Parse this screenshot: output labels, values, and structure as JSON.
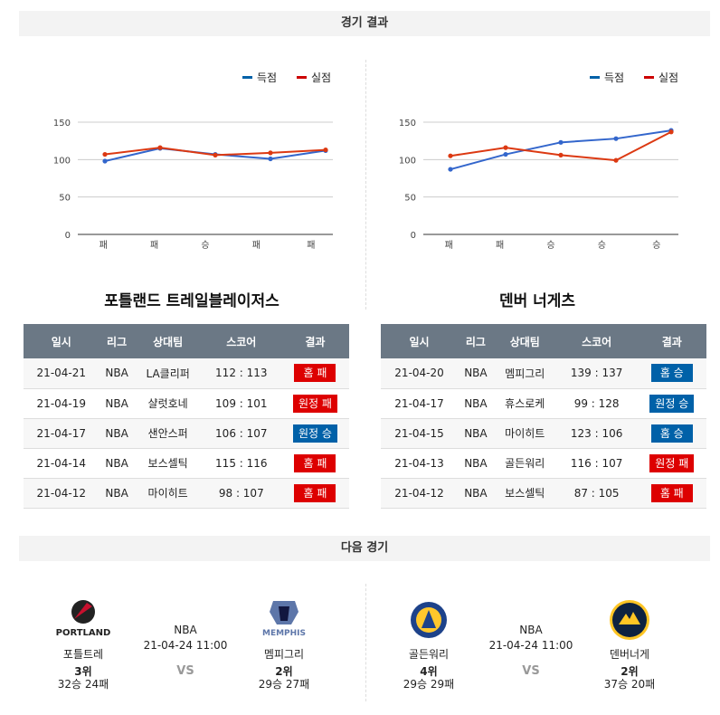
{
  "sections": {
    "results_title": "경기 결과",
    "next_title": "다음 경기"
  },
  "legend": {
    "scored": "득점",
    "conceded": "실점"
  },
  "colors": {
    "scored": "#3366cc",
    "conceded": "#dc3912",
    "loss_badge": "#dd0000",
    "win_badge": "#0061a8"
  },
  "chart_data": [
    {
      "type": "line",
      "title": "포틀랜드 트레일블레이저스",
      "categories": [
        "패",
        "패",
        "승",
        "패",
        "패"
      ],
      "ylim": [
        0,
        150
      ],
      "yticks": [
        0,
        50,
        100,
        150
      ],
      "series": [
        {
          "name": "득점",
          "values": [
            98,
            115,
            107,
            101,
            112
          ]
        },
        {
          "name": "실점",
          "values": [
            107,
            116,
            106,
            109,
            113
          ]
        }
      ],
      "legend": "top-right"
    },
    {
      "type": "line",
      "title": "덴버 너게츠",
      "categories": [
        "패",
        "패",
        "승",
        "승",
        "승"
      ],
      "ylim": [
        0,
        150
      ],
      "yticks": [
        0,
        50,
        100,
        150
      ],
      "series": [
        {
          "name": "득점",
          "values": [
            87,
            107,
            123,
            128,
            139
          ]
        },
        {
          "name": "실점",
          "values": [
            105,
            116,
            106,
            99,
            137
          ]
        }
      ],
      "legend": "top-right"
    }
  ],
  "table_headers": [
    "일시",
    "리그",
    "상대팀",
    "스코어",
    "결과"
  ],
  "teams": [
    {
      "name": "포틀랜드 트레일블레이저스",
      "rows": [
        {
          "date": "21-04-21",
          "league": "NBA",
          "opp": "LA클리퍼",
          "score": "112 : 113",
          "result": "홈 패",
          "win": false
        },
        {
          "date": "21-04-19",
          "league": "NBA",
          "opp": "샬럿호네",
          "score": "109 : 101",
          "result": "원정 패",
          "win": false
        },
        {
          "date": "21-04-17",
          "league": "NBA",
          "opp": "샌안스퍼",
          "score": "106 : 107",
          "result": "원정 승",
          "win": true
        },
        {
          "date": "21-04-14",
          "league": "NBA",
          "opp": "보스셀틱",
          "score": "115 : 116",
          "result": "홈 패",
          "win": false
        },
        {
          "date": "21-04-12",
          "league": "NBA",
          "opp": "마이히트",
          "score": "98 : 107",
          "result": "홈 패",
          "win": false
        }
      ]
    },
    {
      "name": "덴버 너게츠",
      "rows": [
        {
          "date": "21-04-20",
          "league": "NBA",
          "opp": "멤피그리",
          "score": "139 : 137",
          "result": "홈 승",
          "win": true
        },
        {
          "date": "21-04-17",
          "league": "NBA",
          "opp": "휴스로케",
          "score": "99 : 128",
          "result": "원정 승",
          "win": true
        },
        {
          "date": "21-04-15",
          "league": "NBA",
          "opp": "마이히트",
          "score": "123 : 106",
          "result": "홈 승",
          "win": true
        },
        {
          "date": "21-04-13",
          "league": "NBA",
          "opp": "골든워리",
          "score": "116 : 107",
          "result": "원정 패",
          "win": false
        },
        {
          "date": "21-04-12",
          "league": "NBA",
          "opp": "보스셀틱",
          "score": "87 : 105",
          "result": "홈 패",
          "win": false
        }
      ]
    }
  ],
  "next_games": [
    {
      "league": "NBA",
      "datetime": "21-04-24 11:00",
      "vs": "VS",
      "home": {
        "name": "포틀트레",
        "logo_text": "PORTLAND",
        "rank": "3위",
        "record": "32승 24패"
      },
      "away": {
        "name": "멤피그리",
        "logo_text": "MEMPHIS",
        "rank": "2위",
        "record": "29승 27패"
      }
    },
    {
      "league": "NBA",
      "datetime": "21-04-24 11:00",
      "vs": "VS",
      "home": {
        "name": "골든워리",
        "logo_text": "WARRIORS",
        "rank": "4위",
        "record": "29승 29패"
      },
      "away": {
        "name": "덴버너게",
        "logo_text": "NUGGETS",
        "rank": "2위",
        "record": "37승 20패"
      }
    }
  ]
}
